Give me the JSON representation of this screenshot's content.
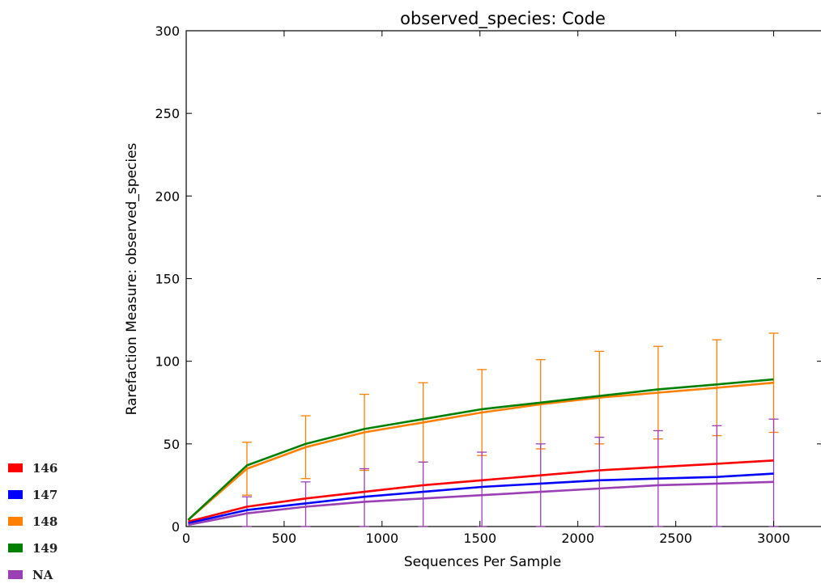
{
  "chart_data": {
    "type": "line",
    "title": "observed_species: Code",
    "xlabel": "Sequences Per Sample",
    "ylabel": "Rarefaction Measure: observed_species",
    "xlim": [
      0,
      3250
    ],
    "ylim": [
      0,
      300
    ],
    "xticks": [
      0,
      500,
      1000,
      1500,
      2000,
      2500,
      3000
    ],
    "yticks": [
      0,
      50,
      100,
      150,
      200,
      250,
      300
    ],
    "grid": false,
    "legend_position": "bottom-left, outside plot",
    "x": [
      10,
      310,
      610,
      910,
      1210,
      1510,
      1810,
      2110,
      2410,
      2710,
      3000
    ],
    "series": [
      {
        "name": "146",
        "color": "#ff0000",
        "values": [
          3,
          12,
          17,
          21,
          25,
          28,
          31,
          34,
          36,
          38,
          40
        ]
      },
      {
        "name": "147",
        "color": "#0000ff",
        "values": [
          2,
          10,
          14,
          18,
          21,
          24,
          26,
          28,
          29,
          30,
          32
        ]
      },
      {
        "name": "148",
        "color": "#ff7f00",
        "values": [
          4,
          35,
          48,
          57,
          63,
          69,
          74,
          78,
          81,
          84,
          87
        ],
        "err": [
          0,
          16,
          19,
          23,
          24,
          26,
          27,
          28,
          28,
          29,
          30
        ]
      },
      {
        "name": "149",
        "color": "#008000",
        "values": [
          4,
          37,
          50,
          59,
          65,
          71,
          75,
          79,
          83,
          86,
          89
        ]
      },
      {
        "name": "NA",
        "color": "#9b3fb5",
        "values": [
          1,
          8,
          12,
          15,
          17,
          19,
          21,
          23,
          25,
          26,
          27
        ],
        "err": [
          0,
          10,
          15,
          20,
          22,
          26,
          29,
          31,
          33,
          35,
          38
        ]
      }
    ]
  }
}
